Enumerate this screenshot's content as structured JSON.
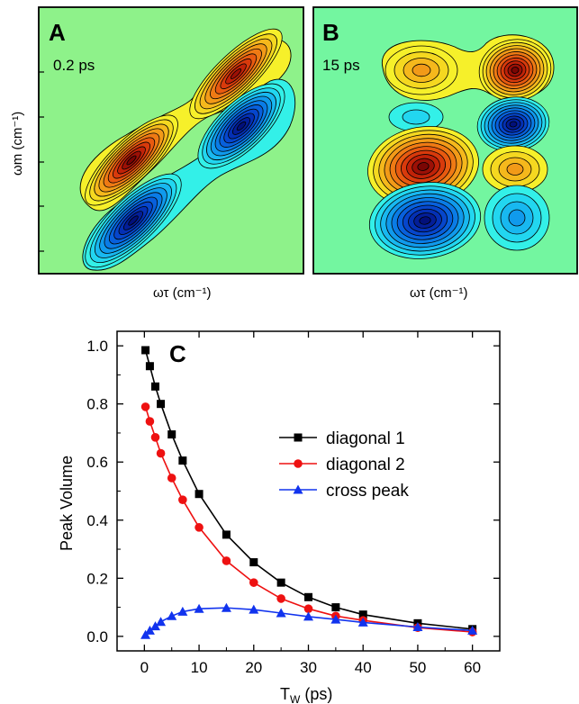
{
  "panels": {
    "a": {
      "label": "A",
      "time": "0.2 ps",
      "xlabel": "ωτ (cm⁻¹)",
      "ylabel": "ωm (cm⁻¹)",
      "background": "#8ef28a"
    },
    "b": {
      "label": "B",
      "time": "15 ps",
      "xlabel": "ωτ (cm⁻¹)",
      "background": "#73f6a0"
    }
  },
  "chart_data": [
    {
      "type": "contour",
      "panel": "A",
      "title": "0.2 ps",
      "xlabel": "ωτ (cm⁻¹)",
      "ylabel": "ωm (cm⁻¹)",
      "peaks": [
        {
          "sign": "positive",
          "location": "upper diagonal"
        },
        {
          "sign": "negative",
          "location": "upper off-diagonal"
        },
        {
          "sign": "positive",
          "location": "lower diagonal"
        },
        {
          "sign": "negative",
          "location": "lower off-diagonal"
        }
      ]
    },
    {
      "type": "contour",
      "panel": "B",
      "title": "15 ps",
      "xlabel": "ωτ (cm⁻¹)",
      "peaks": [
        {
          "sign": "positive",
          "location": "top-left"
        },
        {
          "sign": "positive",
          "location": "top-right"
        },
        {
          "sign": "negative",
          "location": "upper-mid-left"
        },
        {
          "sign": "negative",
          "location": "upper-mid-right"
        },
        {
          "sign": "positive",
          "location": "lower-mid-left"
        },
        {
          "sign": "positive",
          "location": "lower-mid-right"
        },
        {
          "sign": "negative",
          "location": "bottom-left"
        },
        {
          "sign": "negative",
          "location": "bottom-right"
        }
      ]
    },
    {
      "type": "line",
      "panel": "C",
      "panel_label": "C",
      "xlabel": "T",
      "xlabel_sub": "W",
      "xlabel_unit": " (ps)",
      "ylabel": "Peak Volume",
      "xlim": [
        -5,
        65
      ],
      "ylim": [
        -0.05,
        1.05
      ],
      "xticks": [
        0,
        10,
        20,
        30,
        40,
        50,
        60
      ],
      "yticks": [
        0.0,
        0.2,
        0.4,
        0.6,
        0.8,
        1.0
      ],
      "ytick_labels": [
        "0.0",
        "0.2",
        "0.4",
        "0.6",
        "0.8",
        "1.0"
      ],
      "legend_position": "right",
      "series": [
        {
          "name": "diagonal 1",
          "color": "#000000",
          "marker": "square",
          "x": [
            0.2,
            1,
            2,
            3,
            5,
            7,
            10,
            15,
            20,
            25,
            30,
            35,
            40,
            50,
            60
          ],
          "y": [
            0.985,
            0.93,
            0.86,
            0.8,
            0.695,
            0.605,
            0.49,
            0.35,
            0.255,
            0.185,
            0.135,
            0.1,
            0.075,
            0.045,
            0.025
          ]
        },
        {
          "name": "diagonal 2",
          "color": "#ee1111",
          "marker": "circle",
          "x": [
            0.2,
            1,
            2,
            3,
            5,
            7,
            10,
            15,
            20,
            25,
            30,
            35,
            40,
            50,
            60
          ],
          "y": [
            0.79,
            0.74,
            0.685,
            0.63,
            0.545,
            0.47,
            0.375,
            0.26,
            0.185,
            0.13,
            0.095,
            0.07,
            0.055,
            0.03,
            0.015
          ]
        },
        {
          "name": "cross peak",
          "color": "#1133ee",
          "marker": "triangle",
          "x": [
            0.2,
            1,
            2,
            3,
            5,
            7,
            10,
            15,
            20,
            25,
            30,
            35,
            40,
            50,
            60
          ],
          "y": [
            0.005,
            0.02,
            0.035,
            0.05,
            0.07,
            0.085,
            0.095,
            0.098,
            0.092,
            0.08,
            0.068,
            0.058,
            0.048,
            0.032,
            0.02
          ]
        }
      ]
    }
  ]
}
